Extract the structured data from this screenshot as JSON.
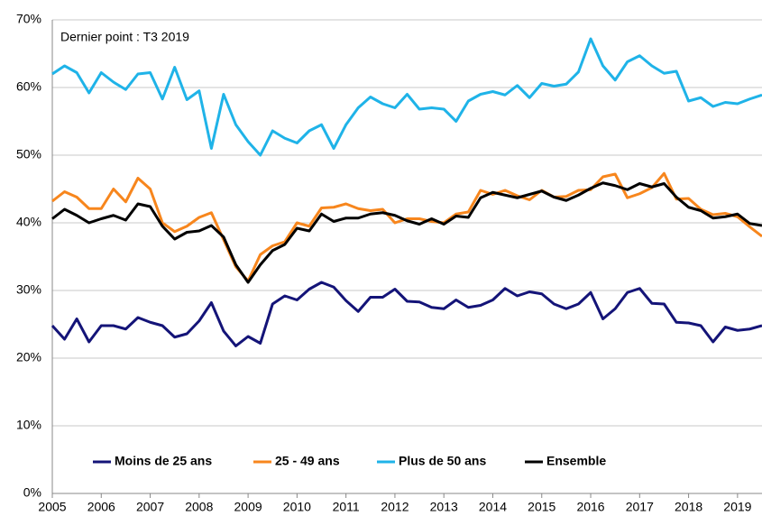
{
  "chart_data": {
    "type": "line",
    "annotations": [
      "Dernier point : T3 2019"
    ],
    "x": [
      2005,
      2005.25,
      2005.5,
      2005.75,
      2006,
      2006.25,
      2006.5,
      2006.75,
      2007,
      2007.25,
      2007.5,
      2007.75,
      2008,
      2008.25,
      2008.5,
      2008.75,
      2009,
      2009.25,
      2009.5,
      2009.75,
      2010,
      2010.25,
      2010.5,
      2010.75,
      2011,
      2011.25,
      2011.5,
      2011.75,
      2012,
      2012.25,
      2012.5,
      2012.75,
      2013,
      2013.25,
      2013.5,
      2013.75,
      2014,
      2014.25,
      2014.5,
      2014.75,
      2015,
      2015.25,
      2015.5,
      2015.75,
      2016,
      2016.25,
      2016.5,
      2016.75,
      2017,
      2017.25,
      2017.5,
      2017.75,
      2018,
      2018.25,
      2018.5,
      2018.75,
      2019,
      2019.25,
      2019.5
    ],
    "xlim": [
      2005,
      2019.5
    ],
    "xticks": [
      2005,
      2006,
      2007,
      2008,
      2009,
      2010,
      2011,
      2012,
      2013,
      2014,
      2015,
      2016,
      2017,
      2018,
      2019
    ],
    "ylim": [
      0,
      70
    ],
    "yticks": [
      {
        "value": 0,
        "label": "0%"
      },
      {
        "value": 10,
        "label": "10%"
      },
      {
        "value": 20,
        "label": "20%"
      },
      {
        "value": 30,
        "label": "30%"
      },
      {
        "value": 40,
        "label": "40%"
      },
      {
        "value": 50,
        "label": "50%"
      },
      {
        "value": 60,
        "label": "60%"
      },
      {
        "value": 70,
        "label": "70%"
      }
    ],
    "grid": true,
    "legend": "bottom",
    "series": [
      {
        "name": "Moins de 25 ans",
        "color": "#141478",
        "values": [
          24.8,
          22.8,
          25.8,
          22.4,
          24.8,
          24.8,
          24.3,
          26,
          25.3,
          24.8,
          23.1,
          23.6,
          25.5,
          28.2,
          24,
          21.8,
          23.2,
          22.2,
          28,
          29.2,
          28.6,
          30.2,
          31.2,
          30.5,
          28.5,
          26.9,
          29,
          29,
          30.2,
          28.4,
          28.3,
          27.5,
          27.3,
          28.6,
          27.5,
          27.8,
          28.6,
          30.3,
          29.2,
          29.8,
          29.5,
          28,
          27.3,
          28,
          29.7,
          25.8,
          27.3,
          29.7,
          30.3,
          28.1,
          28,
          25.3,
          25.2,
          24.8,
          22.4,
          24.6,
          24.1,
          24.3,
          24.8
        ]
      },
      {
        "name": "25 - 49 ans",
        "color": "#f7861d",
        "values": [
          43.2,
          44.6,
          43.8,
          42.1,
          42.1,
          45,
          43.1,
          46.6,
          45,
          40,
          38.7,
          39.5,
          40.8,
          41.5,
          37.5,
          33.5,
          31.4,
          35.3,
          36.6,
          37.2,
          40,
          39.5,
          42.2,
          42.3,
          42.8,
          42.1,
          41.8,
          42,
          40,
          40.6,
          40.6,
          40.2,
          40,
          41.3,
          41.6,
          44.8,
          44.2,
          44.8,
          44,
          43.4,
          44.8,
          43.8,
          43.9,
          44.8,
          44.9,
          46.8,
          47.2,
          43.7,
          44.3,
          45.2,
          47.3,
          43.5,
          43.6,
          42,
          41.2,
          41.4,
          40.9,
          39.4,
          38
        ]
      },
      {
        "name": "Plus de 50 ans",
        "color": "#1fb3e8",
        "values": [
          62,
          63.2,
          62.2,
          59.2,
          62.2,
          60.8,
          59.7,
          62,
          62.2,
          58.3,
          63,
          58.2,
          59.5,
          51,
          59,
          54.5,
          52,
          50,
          53.6,
          52.5,
          51.8,
          53.6,
          54.5,
          51,
          54.5,
          57,
          58.6,
          57.6,
          57,
          59,
          56.8,
          57,
          56.8,
          55,
          58,
          59,
          59.4,
          58.9,
          60.3,
          58.5,
          60.6,
          60.2,
          60.5,
          62.3,
          67.2,
          63.2,
          61.1,
          63.8,
          64.7,
          63.2,
          62.1,
          62.4,
          58,
          58.5,
          57.2,
          57.8,
          57.6,
          58.3,
          58.9
        ]
      },
      {
        "name": "Ensemble",
        "color": "#000000",
        "values": [
          40.6,
          42,
          41.1,
          40,
          40.6,
          41.1,
          40.4,
          42.8,
          42.4,
          39.5,
          37.6,
          38.6,
          38.8,
          39.6,
          37.9,
          33.8,
          31.2,
          33.8,
          35.9,
          36.8,
          39.2,
          38.8,
          41.3,
          40.2,
          40.7,
          40.7,
          41.3,
          41.5,
          41.1,
          40.3,
          39.8,
          40.6,
          39.8,
          41,
          40.8,
          43.7,
          44.5,
          44.1,
          43.7,
          44.2,
          44.7,
          43.8,
          43.3,
          44.1,
          45.1,
          45.9,
          45.5,
          44.9,
          45.8,
          45.3,
          45.8,
          43.8,
          42.3,
          41.8,
          40.7,
          40.9,
          41.3,
          39.9,
          39.6
        ]
      }
    ]
  }
}
